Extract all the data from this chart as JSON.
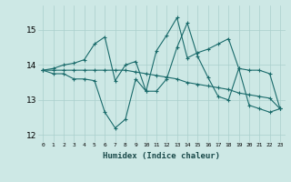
{
  "title": "",
  "xlabel": "Humidex (Indice chaleur)",
  "ylabel": "",
  "background_color": "#cde8e5",
  "grid_color": "#aacfcc",
  "line_color": "#1a6b6b",
  "xlim": [
    -0.5,
    23.5
  ],
  "ylim": [
    11.8,
    15.7
  ],
  "yticks": [
    12,
    13,
    14,
    15
  ],
  "xtick_labels": [
    "0",
    "1",
    "2",
    "3",
    "4",
    "5",
    "6",
    "7",
    "8",
    "9",
    "10",
    "11",
    "12",
    "13",
    "14",
    "15",
    "16",
    "17",
    "18",
    "19",
    "20",
    "21",
    "22",
    "23"
  ],
  "series": [
    [
      13.85,
      13.75,
      13.75,
      13.6,
      13.6,
      13.55,
      12.65,
      12.2,
      12.45,
      13.6,
      13.25,
      13.25,
      13.6,
      14.5,
      15.2,
      14.25,
      13.65,
      13.1,
      13.0,
      13.9,
      12.85,
      12.75,
      12.65,
      12.75
    ],
    [
      13.85,
      13.9,
      14.0,
      14.05,
      14.15,
      14.6,
      14.8,
      13.55,
      14.0,
      14.1,
      13.25,
      14.4,
      14.85,
      15.35,
      14.2,
      14.35,
      14.45,
      14.6,
      14.75,
      13.9,
      13.85,
      13.85,
      13.75,
      12.75
    ],
    [
      13.85,
      13.85,
      13.85,
      13.85,
      13.85,
      13.85,
      13.85,
      13.85,
      13.85,
      13.8,
      13.75,
      13.7,
      13.65,
      13.6,
      13.5,
      13.45,
      13.4,
      13.35,
      13.3,
      13.2,
      13.15,
      13.1,
      13.05,
      12.75
    ]
  ]
}
